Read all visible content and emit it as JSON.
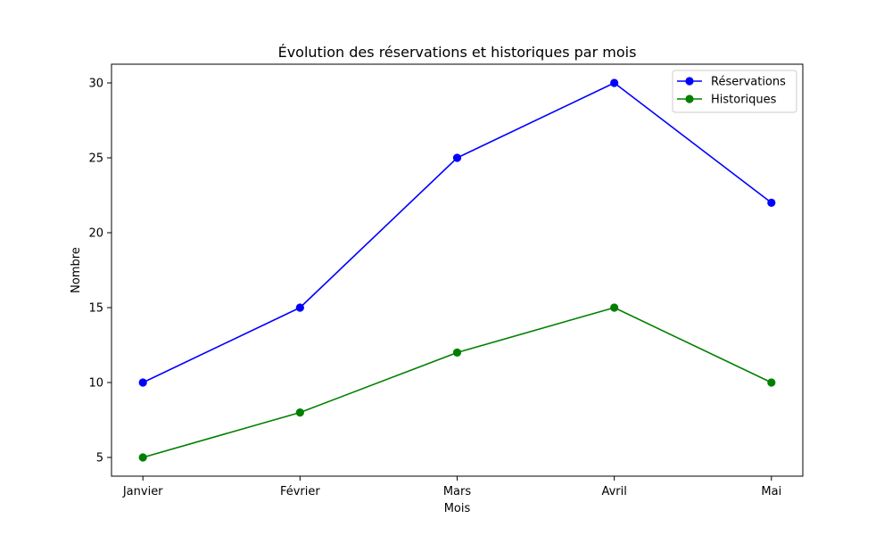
{
  "chart_data": {
    "type": "line",
    "title": "Évolution des réservations et historiques par mois",
    "xlabel": "Mois",
    "ylabel": "Nombre",
    "categories": [
      "Janvier",
      "Février",
      "Mars",
      "Avril",
      "Mai"
    ],
    "yticks": [
      5,
      10,
      15,
      20,
      25,
      30
    ],
    "ylim": [
      3.75,
      31.25
    ],
    "grid": false,
    "legend_position": "top-right",
    "series": [
      {
        "name": "Réservations",
        "color": "#0000ff",
        "marker": "circle",
        "values": [
          10,
          15,
          25,
          30,
          22
        ]
      },
      {
        "name": "Historiques",
        "color": "#008000",
        "marker": "circle",
        "values": [
          5,
          8,
          12,
          15,
          10
        ]
      }
    ]
  }
}
